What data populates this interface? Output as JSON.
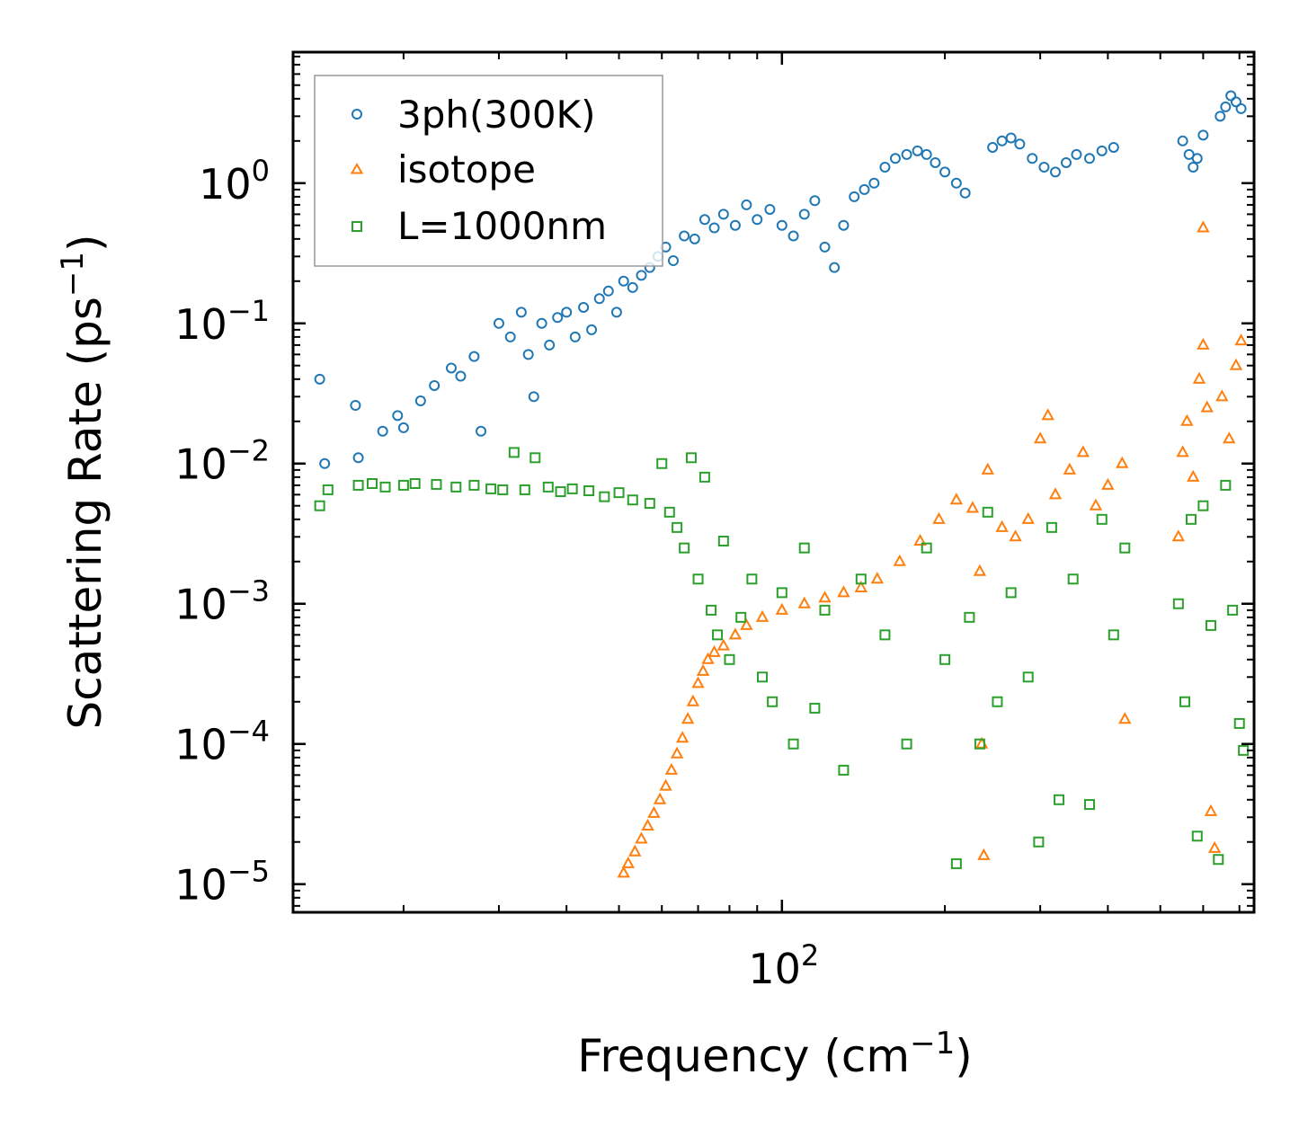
{
  "chart_data": {
    "type": "scatter",
    "title": "",
    "xlabel": "Frequency (cm",
    "xlabel_sup": "−1",
    "xlabel_tail": ")",
    "ylabel": "Scattering Rate (ps",
    "ylabel_sup": "−1",
    "ylabel_tail": ")",
    "xscale": "log",
    "yscale": "log",
    "xlim": [
      12.5,
      745
    ],
    "ylim": [
      6.3e-06,
      8.6
    ],
    "legend_position": "top-left",
    "x_ticks": [
      {
        "value": 100,
        "base": "10",
        "exp": "2"
      }
    ],
    "y_ticks": [
      {
        "value": 1e-05,
        "base": "10",
        "exp": "−5"
      },
      {
        "value": 0.0001,
        "base": "10",
        "exp": "−4"
      },
      {
        "value": 0.001,
        "base": "10",
        "exp": "−3"
      },
      {
        "value": 0.01,
        "base": "10",
        "exp": "−2"
      },
      {
        "value": 0.1,
        "base": "10",
        "exp": "−1"
      },
      {
        "value": 1,
        "base": "10",
        "exp": "0"
      }
    ],
    "series": [
      {
        "name": "3ph(300K)",
        "color": "#1f77b4",
        "marker": "circle",
        "points": [
          [
            14.0,
            0.04
          ],
          [
            14.3,
            0.01
          ],
          [
            16.3,
            0.026
          ],
          [
            16.5,
            0.011
          ],
          [
            18.3,
            0.017
          ],
          [
            19.5,
            0.022
          ],
          [
            20.0,
            0.018
          ],
          [
            21.5,
            0.028
          ],
          [
            22.8,
            0.036
          ],
          [
            24.5,
            0.048
          ],
          [
            25.5,
            0.042
          ],
          [
            27.0,
            0.058
          ],
          [
            27.8,
            0.017
          ],
          [
            30.0,
            0.1
          ],
          [
            31.5,
            0.08
          ],
          [
            33.0,
            0.12
          ],
          [
            34.0,
            0.06
          ],
          [
            34.8,
            0.03
          ],
          [
            36.0,
            0.1
          ],
          [
            37.2,
            0.07
          ],
          [
            38.5,
            0.11
          ],
          [
            40.0,
            0.12
          ],
          [
            41.5,
            0.08
          ],
          [
            43.0,
            0.13
          ],
          [
            44.5,
            0.09
          ],
          [
            46.0,
            0.15
          ],
          [
            47.8,
            0.17
          ],
          [
            49.5,
            0.12
          ],
          [
            51.0,
            0.2
          ],
          [
            53.0,
            0.18
          ],
          [
            55.0,
            0.22
          ],
          [
            57.0,
            0.25
          ],
          [
            59.0,
            0.3
          ],
          [
            61.0,
            0.35
          ],
          [
            63.0,
            0.28
          ],
          [
            66.0,
            0.42
          ],
          [
            69.0,
            0.4
          ],
          [
            72.0,
            0.55
          ],
          [
            75.0,
            0.48
          ],
          [
            78.0,
            0.6
          ],
          [
            82.0,
            0.5
          ],
          [
            86.0,
            0.7
          ],
          [
            90.0,
            0.55
          ],
          [
            95.0,
            0.65
          ],
          [
            100.0,
            0.5
          ],
          [
            105.0,
            0.42
          ],
          [
            110.0,
            0.6
          ],
          [
            115.0,
            0.75
          ],
          [
            120.0,
            0.35
          ],
          [
            125.0,
            0.25
          ],
          [
            130.0,
            0.5
          ],
          [
            136.0,
            0.8
          ],
          [
            142.0,
            0.9
          ],
          [
            148.0,
            1.0
          ],
          [
            155.0,
            1.3
          ],
          [
            162.0,
            1.5
          ],
          [
            170.0,
            1.6
          ],
          [
            178.0,
            1.7
          ],
          [
            185.0,
            1.6
          ],
          [
            192.0,
            1.4
          ],
          [
            200.0,
            1.2
          ],
          [
            210.0,
            1.0
          ],
          [
            218.0,
            0.85
          ],
          [
            245.0,
            1.8
          ],
          [
            255.0,
            2.0
          ],
          [
            265.0,
            2.1
          ],
          [
            275.0,
            1.9
          ],
          [
            290.0,
            1.5
          ],
          [
            305.0,
            1.3
          ],
          [
            320.0,
            1.2
          ],
          [
            335.0,
            1.4
          ],
          [
            350.0,
            1.6
          ],
          [
            370.0,
            1.5
          ],
          [
            390.0,
            1.7
          ],
          [
            410.0,
            1.8
          ],
          [
            550.0,
            2.0
          ],
          [
            565.0,
            1.6
          ],
          [
            575.0,
            1.3
          ],
          [
            585.0,
            1.5
          ],
          [
            600.0,
            2.2
          ],
          [
            645.0,
            3.0
          ],
          [
            660.0,
            3.5
          ],
          [
            675.0,
            4.2
          ],
          [
            690.0,
            3.8
          ],
          [
            705.0,
            3.4
          ]
        ]
      },
      {
        "name": "isotope",
        "color": "#ff7f0e",
        "marker": "triangle",
        "points": [
          [
            51.0,
            1.2e-05
          ],
          [
            52.0,
            1.4e-05
          ],
          [
            53.5,
            1.7e-05
          ],
          [
            55.0,
            2.1e-05
          ],
          [
            56.5,
            2.6e-05
          ],
          [
            58.0,
            3.2e-05
          ],
          [
            59.5,
            4e-05
          ],
          [
            61.0,
            5e-05
          ],
          [
            62.5,
            6.5e-05
          ],
          [
            64.0,
            8.5e-05
          ],
          [
            65.5,
            0.00011
          ],
          [
            67.0,
            0.00015
          ],
          [
            68.5,
            0.0002
          ],
          [
            70.0,
            0.00027
          ],
          [
            71.5,
            0.00033
          ],
          [
            73.0,
            0.0004
          ],
          [
            75.0,
            0.00045
          ],
          [
            78.0,
            0.0005
          ],
          [
            82.0,
            0.0006
          ],
          [
            86.0,
            0.0007
          ],
          [
            92.0,
            0.0008
          ],
          [
            100.0,
            0.0009
          ],
          [
            110.0,
            0.001
          ],
          [
            120.0,
            0.0011
          ],
          [
            130.0,
            0.0012
          ],
          [
            140.0,
            0.0013
          ],
          [
            150.0,
            0.0015
          ],
          [
            165.0,
            0.002
          ],
          [
            180.0,
            0.0028
          ],
          [
            195.0,
            0.004
          ],
          [
            210.0,
            0.0055
          ],
          [
            225.0,
            0.0048
          ],
          [
            232.0,
            0.0017
          ],
          [
            234.0,
            0.0001
          ],
          [
            236.0,
            1.6e-05
          ],
          [
            240.0,
            0.009
          ],
          [
            255.0,
            0.0035
          ],
          [
            270.0,
            0.003
          ],
          [
            285.0,
            0.004
          ],
          [
            300.0,
            0.015
          ],
          [
            310.0,
            0.022
          ],
          [
            320.0,
            0.006
          ],
          [
            340.0,
            0.009
          ],
          [
            360.0,
            0.012
          ],
          [
            380.0,
            0.005
          ],
          [
            400.0,
            0.007
          ],
          [
            425.0,
            0.01
          ],
          [
            430.0,
            0.00015
          ],
          [
            540.0,
            0.003
          ],
          [
            550.0,
            0.012
          ],
          [
            560.0,
            0.02
          ],
          [
            575.0,
            0.008
          ],
          [
            590.0,
            0.04
          ],
          [
            600.0,
            0.07
          ],
          [
            610.0,
            0.025
          ],
          [
            620.0,
            3.3e-05
          ],
          [
            630.0,
            1.8e-05
          ],
          [
            650.0,
            0.03
          ],
          [
            670.0,
            0.015
          ],
          [
            690.0,
            0.05
          ],
          [
            705.0,
            0.075
          ],
          [
            600.0,
            0.48
          ]
        ]
      },
      {
        "name": "L=1000nm",
        "color": "#2ca02c",
        "marker": "square",
        "points": [
          [
            14.0,
            0.005
          ],
          [
            14.5,
            0.0065
          ],
          [
            16.5,
            0.007
          ],
          [
            17.5,
            0.0072
          ],
          [
            18.5,
            0.0068
          ],
          [
            20.0,
            0.007
          ],
          [
            21.0,
            0.0072
          ],
          [
            23.0,
            0.0071
          ],
          [
            25.0,
            0.0068
          ],
          [
            27.0,
            0.007
          ],
          [
            29.0,
            0.0066
          ],
          [
            30.5,
            0.0065
          ],
          [
            32.0,
            0.012
          ],
          [
            33.5,
            0.0065
          ],
          [
            35.0,
            0.011
          ],
          [
            37.0,
            0.0068
          ],
          [
            39.0,
            0.0063
          ],
          [
            41.0,
            0.0066
          ],
          [
            44.0,
            0.0064
          ],
          [
            47.0,
            0.0058
          ],
          [
            50.0,
            0.0062
          ],
          [
            53.0,
            0.0055
          ],
          [
            57.0,
            0.0052
          ],
          [
            60.0,
            0.01
          ],
          [
            62.0,
            0.0045
          ],
          [
            64.0,
            0.0035
          ],
          [
            66.0,
            0.0025
          ],
          [
            68.0,
            0.011
          ],
          [
            70.0,
            0.0015
          ],
          [
            72.0,
            0.008
          ],
          [
            74.0,
            0.0009
          ],
          [
            76.0,
            0.0006
          ],
          [
            78.0,
            0.0028
          ],
          [
            80.0,
            0.0004
          ],
          [
            84.0,
            0.0008
          ],
          [
            88.0,
            0.0015
          ],
          [
            92.0,
            0.0003
          ],
          [
            96.0,
            0.0002
          ],
          [
            100.0,
            0.0012
          ],
          [
            105.0,
            0.0001
          ],
          [
            110.0,
            0.0025
          ],
          [
            115.0,
            0.00018
          ],
          [
            120.0,
            0.0009
          ],
          [
            130.0,
            6.5e-05
          ],
          [
            140.0,
            0.0015
          ],
          [
            155.0,
            0.0006
          ],
          [
            170.0,
            0.0001
          ],
          [
            185.0,
            0.0025
          ],
          [
            200.0,
            0.0004
          ],
          [
            210.0,
            1.4e-05
          ],
          [
            222.0,
            0.0008
          ],
          [
            232.0,
            0.0001
          ],
          [
            240.0,
            0.0045
          ],
          [
            250.0,
            0.0002
          ],
          [
            265.0,
            0.0012
          ],
          [
            285.0,
            0.0003
          ],
          [
            298.0,
            2e-05
          ],
          [
            315.0,
            0.0035
          ],
          [
            325.0,
            4e-05
          ],
          [
            345.0,
            0.0015
          ],
          [
            370.0,
            3.7e-05
          ],
          [
            390.0,
            0.004
          ],
          [
            410.0,
            0.0006
          ],
          [
            430.0,
            0.0025
          ],
          [
            540.0,
            0.001
          ],
          [
            555.0,
            0.0002
          ],
          [
            570.0,
            0.004
          ],
          [
            585.0,
            2.2e-05
          ],
          [
            600.0,
            0.005
          ],
          [
            620.0,
            0.0007
          ],
          [
            640.0,
            1.5e-05
          ],
          [
            660.0,
            0.007
          ],
          [
            680.0,
            0.0009
          ],
          [
            700.0,
            0.00014
          ],
          [
            712.0,
            9e-05
          ]
        ]
      }
    ]
  }
}
